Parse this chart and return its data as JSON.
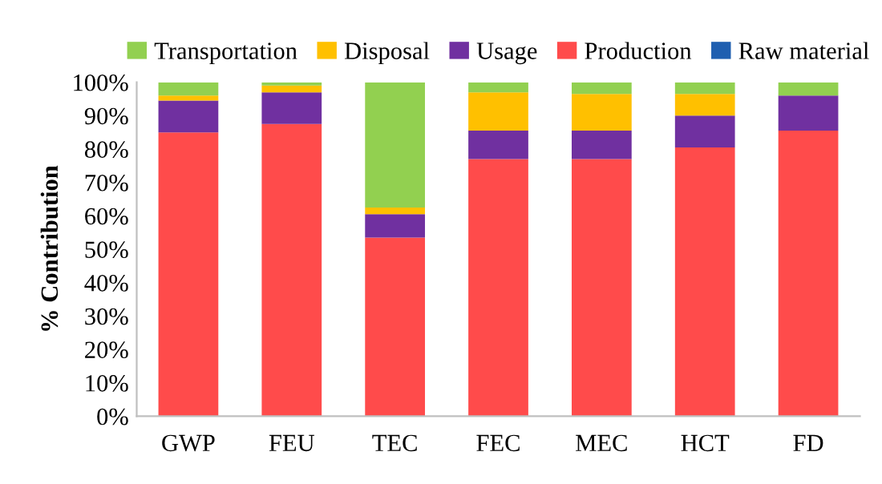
{
  "chart_data": {
    "type": "bar",
    "stacked": true,
    "ylabel": "% Contribution",
    "categories": [
      "GWP",
      "FEU",
      "TEC",
      "FEC",
      "MEC",
      "HCT",
      "FD"
    ],
    "series": [
      {
        "name": "Raw material",
        "color": "#1f5fb0",
        "values": [
          0,
          0,
          0,
          0,
          0,
          0,
          0
        ]
      },
      {
        "name": "Production",
        "color": "#ff4b4b",
        "values": [
          85,
          87.5,
          53.5,
          77,
          77,
          80.5,
          85.5
        ]
      },
      {
        "name": "Usage",
        "color": "#7030a0",
        "values": [
          9.5,
          9.5,
          7,
          8.5,
          8.5,
          9.5,
          10.5
        ]
      },
      {
        "name": "Disposal",
        "color": "#ffc000",
        "values": [
          1.5,
          2,
          2,
          11.5,
          11,
          6.5,
          0
        ]
      },
      {
        "name": "Transportation",
        "color": "#92d050",
        "values": [
          4,
          1,
          37.5,
          3,
          3.5,
          3.5,
          4
        ]
      }
    ],
    "ylim": [
      0,
      100
    ],
    "yticks": [
      {
        "value": 0,
        "label": "0%"
      },
      {
        "value": 10,
        "label": "10%"
      },
      {
        "value": 20,
        "label": "20%"
      },
      {
        "value": 30,
        "label": "30%"
      },
      {
        "value": 40,
        "label": "40%"
      },
      {
        "value": 50,
        "label": "50%"
      },
      {
        "value": 60,
        "label": "60%"
      },
      {
        "value": 70,
        "label": "70%"
      },
      {
        "value": 80,
        "label": "80%"
      },
      {
        "value": 90,
        "label": "90%"
      },
      {
        "value": 100,
        "label": "100%"
      }
    ],
    "grid": false,
    "legend": "top"
  }
}
